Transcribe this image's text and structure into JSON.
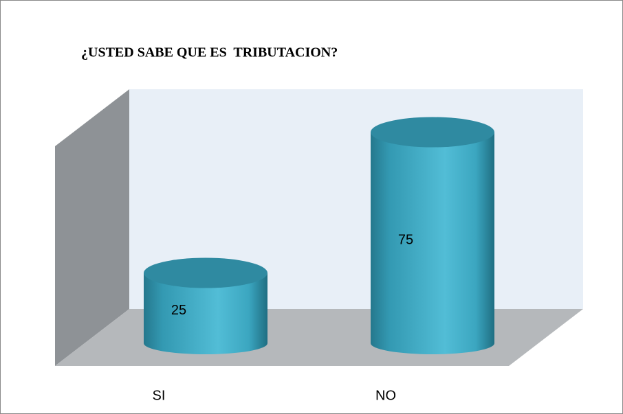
{
  "chart_data": {
    "type": "bar",
    "title": "¿USTED SABE QUE ES  TRIBUTACION?",
    "categories": [
      "SI",
      "NO"
    ],
    "values": [
      25,
      75
    ],
    "color": "#3aa3bd"
  }
}
